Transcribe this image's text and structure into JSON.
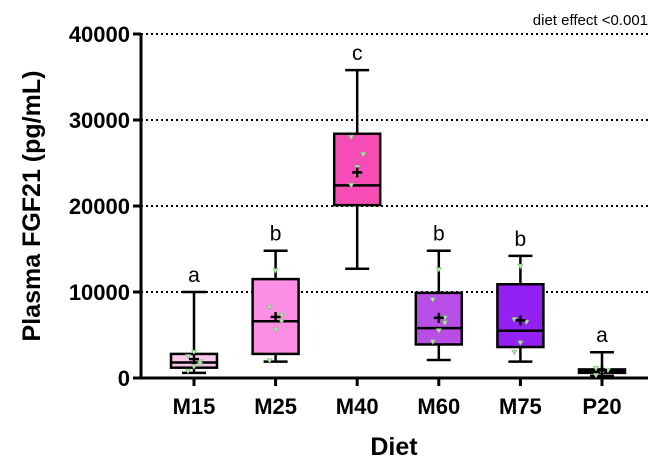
{
  "chart_data": {
    "type": "box",
    "xlabel": "Diet",
    "ylabel": "Plasma FGF21 (pg/mL)",
    "ylim": [
      0,
      40000
    ],
    "yticks": [
      0,
      10000,
      20000,
      30000,
      40000
    ],
    "ytick_labels": [
      "0",
      "10000",
      "20000",
      "30000",
      "40000"
    ],
    "grid": "dotted horizontal at major ticks",
    "annotation": "diet effect <0.001",
    "groups": [
      {
        "label": "M15",
        "color": "#f9c9ea",
        "min": 600,
        "q1": 1200,
        "median": 1800,
        "q3": 2800,
        "max": 10000,
        "mean": 2200,
        "sig": "a",
        "points": [
          800,
          1300,
          1900,
          2500,
          3000,
          1600
        ]
      },
      {
        "label": "M25",
        "color": "#fb8fe4",
        "min": 1900,
        "q1": 2800,
        "median": 6600,
        "q3": 11500,
        "max": 14800,
        "mean": 7100,
        "sig": "b",
        "points": [
          2000,
          5600,
          6600,
          8200,
          12500,
          7300
        ]
      },
      {
        "label": "M40",
        "color": "#f54cb6",
        "min": 12700,
        "q1": 20100,
        "median": 22400,
        "q3": 28400,
        "max": 35800,
        "mean": 23900,
        "sig": "c",
        "points": [
          22400,
          23500,
          26000,
          28000,
          24500
        ]
      },
      {
        "label": "M60",
        "color": "#b84ee6",
        "min": 2100,
        "q1": 3900,
        "median": 5800,
        "q3": 9900,
        "max": 14800,
        "mean": 7000,
        "sig": "b",
        "points": [
          4200,
          5500,
          7000,
          9100,
          12600,
          6400
        ]
      },
      {
        "label": "M75",
        "color": "#9421f4",
        "min": 1900,
        "q1": 3600,
        "median": 5500,
        "q3": 10900,
        "max": 14200,
        "mean": 6700,
        "sig": "b",
        "points": [
          3000,
          4100,
          6500,
          6800,
          13000
        ]
      },
      {
        "label": "P20",
        "color": "#d3bdf7",
        "min": 250,
        "q1": 600,
        "median": 800,
        "q3": 1000,
        "max": 3000,
        "mean": 900,
        "sig": "a",
        "points": [
          300,
          700,
          900,
          1100,
          600
        ]
      }
    ]
  }
}
